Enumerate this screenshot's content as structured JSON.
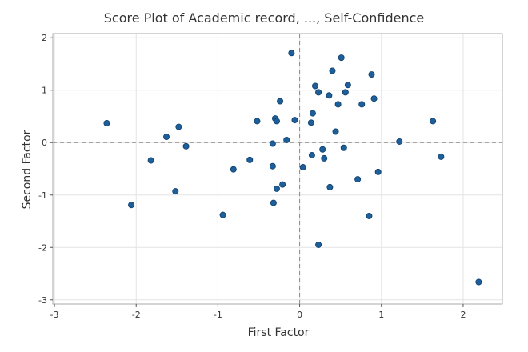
{
  "chart_data": {
    "type": "scatter",
    "title": "Score Plot of Academic record, ..., Self-Confidence",
    "xlabel": "First Factor",
    "ylabel": "Second Factor",
    "xlim": [
      -3.02,
      2.48
    ],
    "ylim": [
      -3.08,
      2.08
    ],
    "xticks": [
      -3,
      -2,
      -1,
      0,
      1,
      2
    ],
    "yticks": [
      -3,
      -2,
      -1,
      0,
      1,
      2
    ],
    "grid": true,
    "reference_lines": {
      "x": 0,
      "y": 0
    },
    "marker_color": "#1f5f99",
    "points": [
      {
        "x": -2.36,
        "y": 0.37
      },
      {
        "x": -2.06,
        "y": -1.19
      },
      {
        "x": -1.82,
        "y": -0.34
      },
      {
        "x": -1.63,
        "y": 0.11
      },
      {
        "x": -1.52,
        "y": -0.93
      },
      {
        "x": -1.48,
        "y": 0.3
      },
      {
        "x": -1.39,
        "y": -0.07
      },
      {
        "x": -0.94,
        "y": -1.38
      },
      {
        "x": -0.81,
        "y": -0.51
      },
      {
        "x": -0.61,
        "y": -0.33
      },
      {
        "x": -0.52,
        "y": 0.41
      },
      {
        "x": -0.33,
        "y": -0.02
      },
      {
        "x": -0.33,
        "y": -0.45
      },
      {
        "x": -0.32,
        "y": -1.15
      },
      {
        "x": -0.3,
        "y": 0.46
      },
      {
        "x": -0.28,
        "y": 0.41
      },
      {
        "x": -0.28,
        "y": -0.88
      },
      {
        "x": -0.24,
        "y": 0.79
      },
      {
        "x": -0.21,
        "y": -0.8
      },
      {
        "x": -0.16,
        "y": 0.05
      },
      {
        "x": -0.1,
        "y": 1.71
      },
      {
        "x": -0.06,
        "y": 0.43
      },
      {
        "x": 0.04,
        "y": -0.47
      },
      {
        "x": 0.14,
        "y": 0.38
      },
      {
        "x": 0.15,
        "y": -0.24
      },
      {
        "x": 0.16,
        "y": 0.56
      },
      {
        "x": 0.19,
        "y": 1.08
      },
      {
        "x": 0.23,
        "y": 0.96
      },
      {
        "x": 0.23,
        "y": -1.95
      },
      {
        "x": 0.28,
        "y": -0.13
      },
      {
        "x": 0.3,
        "y": -0.3
      },
      {
        "x": 0.36,
        "y": 0.9
      },
      {
        "x": 0.37,
        "y": -0.85
      },
      {
        "x": 0.4,
        "y": 1.37
      },
      {
        "x": 0.44,
        "y": 0.21
      },
      {
        "x": 0.47,
        "y": 0.73
      },
      {
        "x": 0.51,
        "y": 1.62
      },
      {
        "x": 0.54,
        "y": -0.1
      },
      {
        "x": 0.56,
        "y": 0.96
      },
      {
        "x": 0.59,
        "y": 1.1
      },
      {
        "x": 0.71,
        "y": -0.7
      },
      {
        "x": 0.76,
        "y": 0.73
      },
      {
        "x": 0.85,
        "y": -1.4
      },
      {
        "x": 0.88,
        "y": 1.3
      },
      {
        "x": 0.91,
        "y": 0.84
      },
      {
        "x": 0.96,
        "y": -0.56
      },
      {
        "x": 1.22,
        "y": 0.02
      },
      {
        "x": 1.63,
        "y": 0.41
      },
      {
        "x": 1.73,
        "y": -0.27
      },
      {
        "x": 2.19,
        "y": -2.66
      }
    ]
  }
}
